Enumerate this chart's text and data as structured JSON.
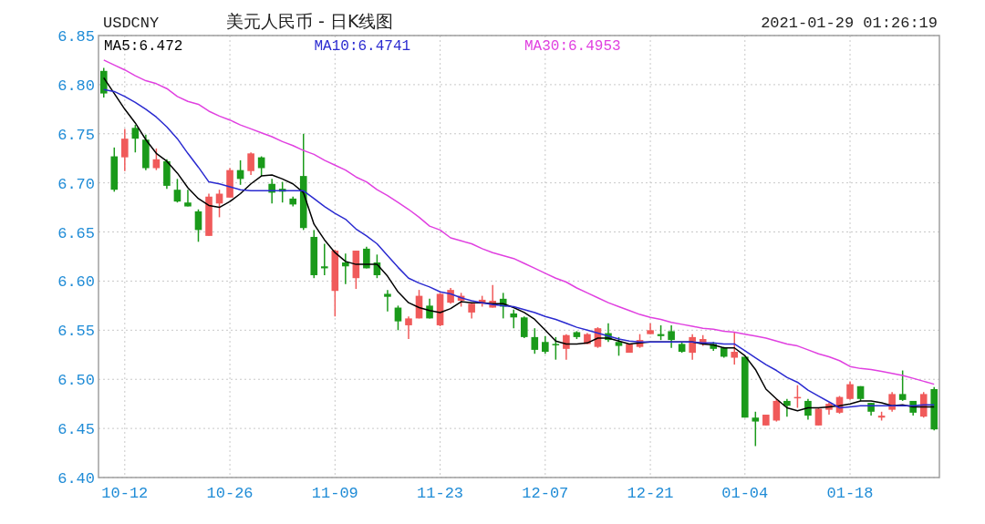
{
  "chart_data": {
    "type": "candlestick",
    "subtitle": "USDCNY",
    "title": "美元人民币 - 日K线图",
    "annotations": [
      "2021-01-29 01:26:19"
    ],
    "categories": [
      null,
      null,
      "10-12",
      null,
      null,
      null,
      null,
      null,
      null,
      null,
      null,
      null,
      "10-26",
      null,
      null,
      null,
      null,
      null,
      null,
      null,
      null,
      null,
      "11-09",
      null,
      null,
      null,
      null,
      null,
      null,
      null,
      null,
      null,
      "11-23",
      null,
      null,
      null,
      null,
      null,
      null,
      null,
      null,
      null,
      "12-07",
      null,
      null,
      null,
      null,
      null,
      null,
      null,
      null,
      null,
      "12-21",
      null,
      null,
      null,
      null,
      null,
      null,
      null,
      null,
      "01-04",
      null,
      null,
      null,
      null,
      null,
      null,
      null,
      null,
      null,
      "01-18",
      null,
      null,
      null,
      null,
      null,
      null,
      null,
      null
    ],
    "ohlc": [
      [
        6.814,
        6.817,
        6.787,
        6.791
      ],
      [
        6.727,
        6.736,
        6.691,
        6.693
      ],
      [
        6.726,
        6.755,
        6.712,
        6.745
      ],
      [
        6.756,
        6.759,
        6.731,
        6.745
      ],
      [
        6.744,
        6.749,
        6.713,
        6.715
      ],
      [
        6.715,
        6.735,
        6.713,
        6.724
      ],
      [
        6.722,
        6.724,
        6.694,
        6.697
      ],
      [
        6.693,
        6.704,
        6.68,
        6.681
      ],
      [
        6.68,
        6.693,
        6.676,
        6.676
      ],
      [
        6.671,
        6.673,
        6.64,
        6.652
      ],
      [
        6.646,
        6.689,
        6.646,
        6.686
      ],
      [
        6.679,
        6.693,
        6.665,
        6.689
      ],
      [
        6.685,
        6.715,
        6.685,
        6.713
      ],
      [
        6.713,
        6.723,
        6.698,
        6.704
      ],
      [
        6.712,
        6.731,
        6.708,
        6.73
      ],
      [
        6.726,
        6.727,
        6.707,
        6.715
      ],
      [
        6.699,
        6.704,
        6.679,
        6.69
      ],
      [
        6.694,
        6.701,
        6.68,
        6.691
      ],
      [
        6.684,
        6.686,
        6.676,
        6.678
      ],
      [
        6.707,
        6.75,
        6.652,
        6.654
      ],
      [
        6.645,
        6.652,
        6.603,
        6.606
      ],
      [
        6.615,
        6.638,
        6.606,
        6.613
      ],
      [
        6.59,
        6.632,
        6.564,
        6.631
      ],
      [
        6.619,
        6.628,
        6.597,
        6.615
      ],
      [
        6.603,
        6.631,
        6.592,
        6.631
      ],
      [
        6.633,
        6.635,
        6.613,
        6.613
      ],
      [
        6.619,
        6.627,
        6.603,
        6.606
      ],
      [
        6.587,
        6.591,
        6.569,
        6.584
      ],
      [
        6.573,
        6.575,
        6.55,
        6.559
      ],
      [
        6.555,
        6.564,
        6.541,
        6.562
      ],
      [
        6.562,
        6.591,
        6.562,
        6.585
      ],
      [
        6.575,
        6.582,
        6.562,
        6.562
      ],
      [
        6.555,
        6.588,
        6.554,
        6.587
      ],
      [
        6.578,
        6.593,
        6.577,
        6.591
      ],
      [
        6.58,
        6.588,
        6.574,
        6.585
      ],
      [
        6.568,
        6.578,
        6.562,
        6.577
      ],
      [
        6.577,
        6.585,
        6.574,
        6.581
      ],
      [
        6.573,
        6.596,
        6.573,
        6.58
      ],
      [
        6.582,
        6.588,
        6.562,
        6.574
      ],
      [
        6.567,
        6.571,
        6.552,
        6.563
      ],
      [
        6.563,
        6.564,
        6.542,
        6.543
      ],
      [
        6.543,
        6.552,
        6.526,
        6.53
      ],
      [
        6.538,
        6.544,
        6.526,
        6.528
      ],
      [
        6.536,
        6.543,
        6.52,
        6.536
      ],
      [
        6.531,
        6.546,
        6.52,
        6.545
      ],
      [
        6.548,
        6.549,
        6.541,
        6.543
      ],
      [
        6.536,
        6.547,
        6.536,
        6.546
      ],
      [
        6.533,
        6.553,
        6.532,
        6.552
      ],
      [
        6.547,
        6.557,
        6.538,
        6.54
      ],
      [
        6.538,
        6.543,
        6.524,
        6.534
      ],
      [
        6.527,
        6.536,
        6.527,
        6.536
      ],
      [
        6.533,
        6.546,
        6.532,
        6.54
      ],
      [
        6.546,
        6.557,
        6.546,
        6.55
      ],
      [
        6.546,
        6.555,
        6.54,
        6.544
      ],
      [
        6.549,
        6.555,
        6.532,
        6.54
      ],
      [
        6.536,
        6.538,
        6.527,
        6.528
      ],
      [
        6.527,
        6.546,
        6.52,
        6.543
      ],
      [
        6.536,
        6.545,
        6.534,
        6.541
      ],
      [
        6.536,
        6.538,
        6.529,
        6.531
      ],
      [
        6.532,
        6.533,
        6.522,
        6.523
      ],
      [
        6.522,
        6.548,
        6.515,
        6.528
      ],
      [
        6.523,
        6.523,
        6.461,
        6.461
      ],
      [
        6.461,
        6.467,
        6.432,
        6.457
      ],
      [
        6.453,
        6.464,
        6.453,
        6.464
      ],
      [
        6.458,
        6.48,
        6.457,
        6.478
      ],
      [
        6.478,
        6.48,
        6.462,
        6.473
      ],
      [
        6.481,
        6.494,
        6.471,
        6.482
      ],
      [
        6.478,
        6.48,
        6.459,
        6.463
      ],
      [
        6.453,
        6.471,
        6.453,
        6.47
      ],
      [
        6.469,
        6.476,
        6.464,
        6.475
      ],
      [
        6.466,
        6.483,
        6.465,
        6.482
      ],
      [
        6.48,
        6.498,
        6.479,
        6.495
      ],
      [
        6.493,
        6.493,
        6.478,
        6.48
      ],
      [
        6.476,
        6.476,
        6.463,
        6.467
      ],
      [
        6.461,
        6.467,
        6.458,
        6.463
      ],
      [
        6.469,
        6.487,
        6.467,
        6.485
      ],
      [
        6.485,
        6.509,
        6.478,
        6.479
      ],
      [
        6.478,
        6.478,
        6.463,
        6.466
      ],
      [
        6.462,
        6.487,
        6.461,
        6.485
      ],
      [
        6.49,
        6.492,
        6.448,
        6.449
      ]
    ],
    "colors": [
      "#1a9a1a",
      "#1a9a1a",
      "#f05a5a",
      "#1a9a1a",
      "#1a9a1a",
      "#f05a5a",
      "#1a9a1a",
      "#1a9a1a",
      "#1a9a1a",
      "#1a9a1a",
      "#f05a5a",
      "#f05a5a",
      "#f05a5a",
      "#1a9a1a",
      "#f05a5a",
      "#1a9a1a",
      "#1a9a1a",
      "#1a9a1a",
      "#1a9a1a",
      "#1a9a1a",
      "#1a9a1a",
      "#1a9a1a",
      "#f05a5a",
      "#1a9a1a",
      "#f05a5a",
      "#1a9a1a",
      "#1a9a1a",
      "#1a9a1a",
      "#1a9a1a",
      "#f05a5a",
      "#f05a5a",
      "#1a9a1a",
      "#f05a5a",
      "#f05a5a",
      "#f05a5a",
      "#f05a5a",
      "#f05a5a",
      "#f05a5a",
      "#1a9a1a",
      "#1a9a1a",
      "#1a9a1a",
      "#1a9a1a",
      "#1a9a1a",
      "#1a9a1a",
      "#f05a5a",
      "#1a9a1a",
      "#f05a5a",
      "#f05a5a",
      "#1a9a1a",
      "#1a9a1a",
      "#f05a5a",
      "#f05a5a",
      "#f05a5a",
      "#1a9a1a",
      "#1a9a1a",
      "#1a9a1a",
      "#f05a5a",
      "#f05a5a",
      "#1a9a1a",
      "#1a9a1a",
      "#f05a5a",
      "#1a9a1a",
      "#1a9a1a",
      "#f05a5a",
      "#f05a5a",
      "#1a9a1a",
      "#f05a5a",
      "#1a9a1a",
      "#f05a5a",
      "#f05a5a",
      "#f05a5a",
      "#f05a5a",
      "#1a9a1a",
      "#1a9a1a",
      "#f05a5a",
      "#f05a5a",
      "#1a9a1a",
      "#1a9a1a",
      "#f05a5a",
      "#1a9a1a"
    ],
    "series": [
      {
        "name": "MA5:6.472",
        "type": "line",
        "color": "#000000",
        "values": [
          6.807,
          6.791,
          6.775,
          6.761,
          6.744,
          6.73,
          6.722,
          6.71,
          6.695,
          6.684,
          6.677,
          6.675,
          6.681,
          6.689,
          6.699,
          6.707,
          6.708,
          6.704,
          6.699,
          6.69,
          6.658,
          6.642,
          6.629,
          6.62,
          6.617,
          6.617,
          6.617,
          6.605,
          6.589,
          6.578,
          6.573,
          6.57,
          6.568,
          6.572,
          6.579,
          6.578,
          6.578,
          6.577,
          6.577,
          6.573,
          6.568,
          6.561,
          6.55,
          6.539,
          6.536,
          6.536,
          6.537,
          6.542,
          6.542,
          6.539,
          6.536,
          6.537,
          6.538,
          6.538,
          6.538,
          6.538,
          6.538,
          6.536,
          6.535,
          6.532,
          6.532,
          6.524,
          6.51,
          6.49,
          6.48,
          6.471,
          6.468,
          6.471,
          6.471,
          6.472,
          6.473,
          6.475,
          6.478,
          6.478,
          6.476,
          6.473,
          6.474,
          6.472,
          6.472,
          6.472
        ]
      },
      {
        "name": "MA10:6.4741",
        "type": "line",
        "color": "#2a2ad0",
        "values": [
          6.795,
          6.793,
          6.788,
          6.782,
          6.775,
          6.767,
          6.757,
          6.745,
          6.73,
          6.716,
          6.701,
          6.699,
          6.696,
          6.693,
          6.692,
          6.692,
          6.692,
          6.692,
          6.692,
          6.692,
          6.684,
          6.676,
          6.669,
          6.663,
          6.653,
          6.646,
          6.638,
          6.626,
          6.614,
          6.603,
          6.598,
          6.594,
          6.589,
          6.587,
          6.583,
          6.58,
          6.578,
          6.576,
          6.575,
          6.574,
          6.571,
          6.568,
          6.564,
          6.561,
          6.557,
          6.553,
          6.55,
          6.547,
          6.544,
          6.541,
          6.539,
          6.538,
          6.538,
          6.538,
          6.538,
          6.538,
          6.538,
          6.537,
          6.537,
          6.536,
          6.536,
          6.529,
          6.522,
          6.515,
          6.509,
          6.502,
          6.497,
          6.489,
          6.483,
          6.477,
          6.471,
          6.472,
          6.473,
          6.473,
          6.473,
          6.473,
          6.473,
          6.473,
          6.474,
          6.474
        ]
      },
      {
        "name": "MA30:6.4953",
        "type": "line",
        "color": "#e040e0",
        "values": [
          6.825,
          6.82,
          6.815,
          6.809,
          6.804,
          6.801,
          6.796,
          6.788,
          6.783,
          6.78,
          6.773,
          6.768,
          6.764,
          6.759,
          6.755,
          6.751,
          6.747,
          6.742,
          6.738,
          6.733,
          6.729,
          6.723,
          6.718,
          6.713,
          6.706,
          6.701,
          6.693,
          6.687,
          6.68,
          6.673,
          6.665,
          6.656,
          6.652,
          6.644,
          6.641,
          6.638,
          6.633,
          6.629,
          6.626,
          6.623,
          6.618,
          6.613,
          6.608,
          6.603,
          6.599,
          6.593,
          6.588,
          6.583,
          6.578,
          6.574,
          6.57,
          6.566,
          6.563,
          6.561,
          6.558,
          6.556,
          6.554,
          6.552,
          6.551,
          6.549,
          6.548,
          6.546,
          6.544,
          6.542,
          6.539,
          6.536,
          6.534,
          6.53,
          6.526,
          6.523,
          6.519,
          6.513,
          6.511,
          6.51,
          6.508,
          6.506,
          6.504,
          6.501,
          6.498,
          6.495
        ]
      }
    ],
    "ylim": [
      6.4,
      6.85
    ],
    "yticks": [
      {
        "value": 6.4,
        "label": "6.40"
      },
      {
        "value": 6.45,
        "label": "6.45"
      },
      {
        "value": 6.5,
        "label": "6.50"
      },
      {
        "value": 6.55,
        "label": "6.55"
      },
      {
        "value": 6.6,
        "label": "6.60"
      },
      {
        "value": 6.65,
        "label": "6.65"
      },
      {
        "value": 6.7,
        "label": "6.70"
      },
      {
        "value": 6.75,
        "label": "6.75"
      },
      {
        "value": 6.8,
        "label": "6.80"
      },
      {
        "value": 6.85,
        "label": "6.85"
      }
    ],
    "grid": true,
    "legend": "top left"
  }
}
